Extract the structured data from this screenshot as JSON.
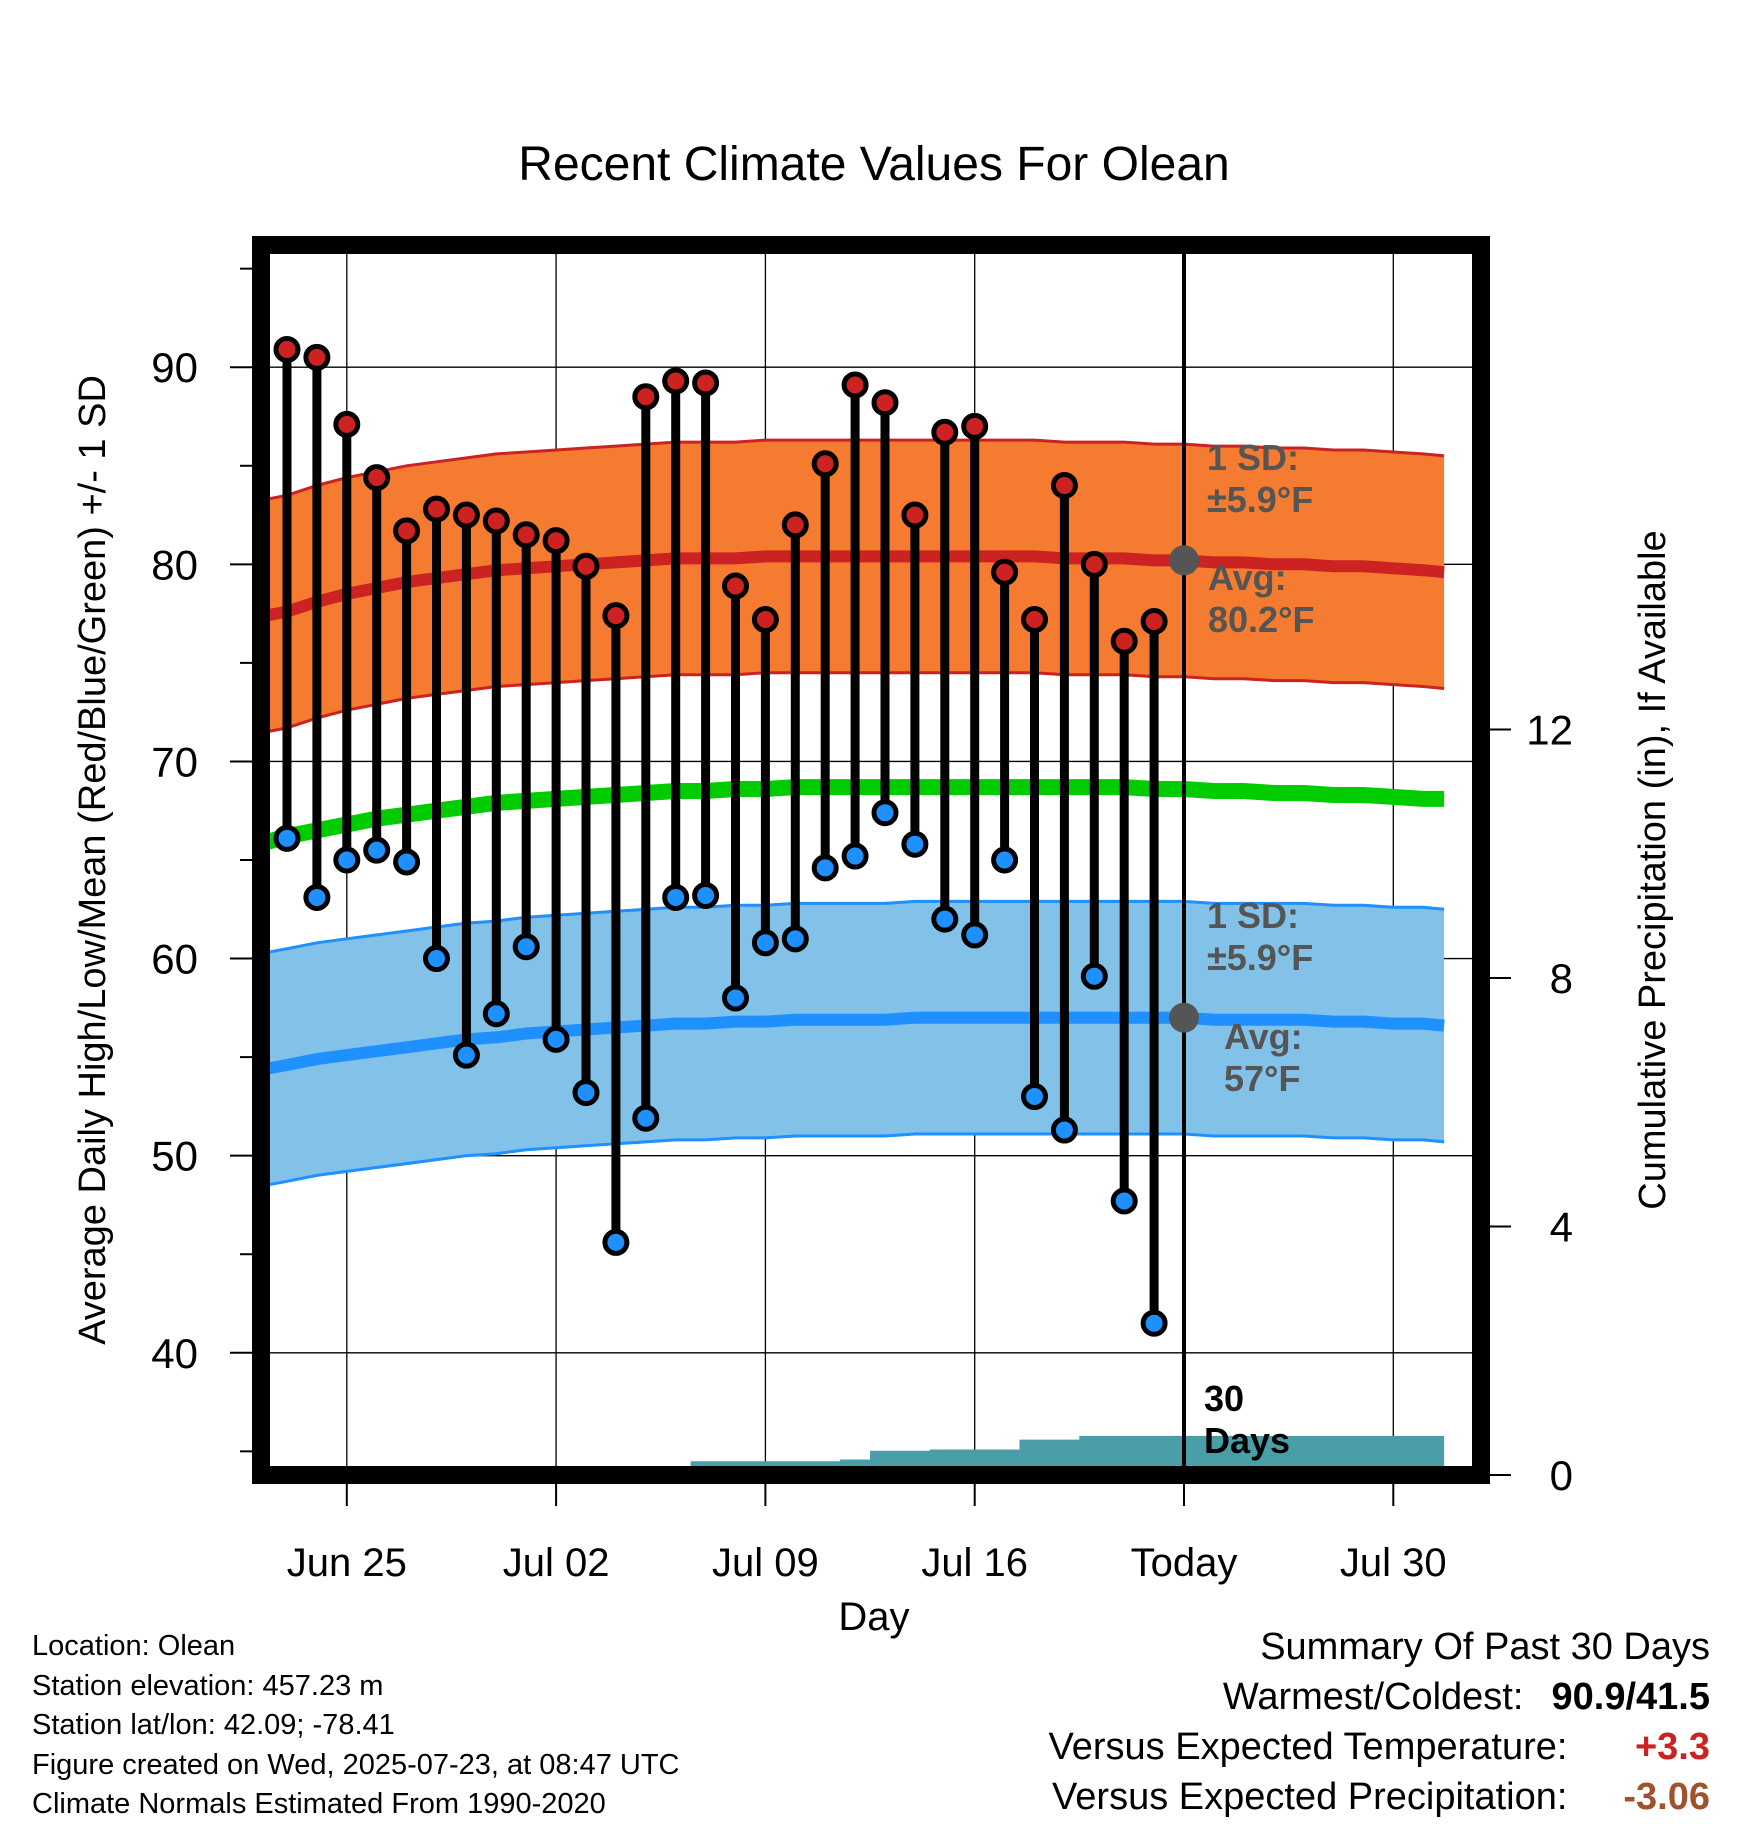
{
  "chart_data": {
    "type": "line",
    "title": "Recent Climate Values For Olean",
    "xlabel": "Day",
    "ylabel": "Average Daily High/Low/Mean (Red/Blue/Green) +/- 1 SD",
    "y2label": "Cumulative Precipitation (in), If Available",
    "x_tick_labels": [
      "Jun 25",
      "Jul 02",
      "Jul 09",
      "Jul 16",
      "Today",
      "Jul 30"
    ],
    "x_tick_days": [
      2,
      9,
      16,
      23,
      30,
      37
    ],
    "ylim": [
      33.8,
      96.2
    ],
    "yticks": [
      40,
      50,
      60,
      70,
      80,
      90
    ],
    "y2lim": [
      0,
      19.8
    ],
    "y2ticks": [
      0,
      4,
      8,
      12
    ],
    "grid": true,
    "x_days": [
      -0.7,
      0,
      1,
      2,
      3,
      4,
      5,
      6,
      7,
      8,
      9,
      10,
      11,
      12,
      13,
      14,
      15,
      16,
      17,
      18,
      19,
      20,
      21,
      22,
      23,
      24,
      25,
      26,
      27,
      28,
      29,
      30,
      31,
      32,
      33,
      34,
      35,
      36,
      37,
      38,
      38.7
    ],
    "daily_dates": [
      "Jun 23",
      "Jun 24",
      "Jun 25",
      "Jun 26",
      "Jun 27",
      "Jun 28",
      "Jun 29",
      "Jun 30",
      "Jul 01",
      "Jul 02",
      "Jul 03",
      "Jul 04",
      "Jul 05",
      "Jul 06",
      "Jul 07",
      "Jul 08",
      "Jul 09",
      "Jul 10",
      "Jul 11",
      "Jul 12",
      "Jul 13",
      "Jul 14",
      "Jul 15",
      "Jul 16",
      "Jul 17",
      "Jul 18",
      "Jul 19",
      "Jul 20",
      "Jul 21",
      "Jul 22"
    ],
    "daily_x": [
      0,
      1,
      2,
      3,
      4,
      5,
      6,
      7,
      8,
      9,
      10,
      11,
      12,
      13,
      14,
      15,
      16,
      17,
      18,
      19,
      20,
      21,
      22,
      23,
      24,
      25,
      26,
      27,
      28,
      29
    ],
    "series": [
      {
        "name": "High",
        "color": "#cc2222",
        "values": [
          90.9,
          90.5,
          87.1,
          84.4,
          81.7,
          82.8,
          82.5,
          82.2,
          81.5,
          81.2,
          79.9,
          77.4,
          88.5,
          89.3,
          89.2,
          78.9,
          77.2,
          82.0,
          85.1,
          89.1,
          88.2,
          82.5,
          86.7,
          87.0,
          79.6,
          77.2,
          84.0,
          80.0,
          76.1,
          77.1
        ]
      },
      {
        "name": "Low",
        "color": "#1e90ff",
        "values": [
          66.1,
          63.1,
          65.0,
          65.5,
          64.9,
          60.0,
          55.1,
          57.2,
          60.6,
          55.9,
          53.2,
          45.6,
          51.9,
          63.1,
          63.2,
          58.0,
          60.8,
          61.0,
          64.6,
          65.2,
          67.4,
          65.8,
          62.0,
          61.2,
          65.0,
          53.0,
          51.3,
          59.1,
          47.7,
          41.5
        ]
      }
    ],
    "normal_high_avg": [
      77.4,
      77.6,
      78.1,
      78.5,
      78.8,
      79.1,
      79.3,
      79.5,
      79.7,
      79.8,
      79.9,
      80.0,
      80.1,
      80.2,
      80.3,
      80.3,
      80.3,
      80.4,
      80.4,
      80.4,
      80.4,
      80.4,
      80.4,
      80.4,
      80.4,
      80.4,
      80.4,
      80.3,
      80.3,
      80.3,
      80.2,
      80.2,
      80.1,
      80.1,
      80.0,
      80.0,
      79.9,
      79.9,
      79.8,
      79.7,
      79.6
    ],
    "normal_high_sd": 5.9,
    "normal_low_avg": [
      54.4,
      54.6,
      54.9,
      55.1,
      55.3,
      55.5,
      55.7,
      55.9,
      56.0,
      56.2,
      56.3,
      56.4,
      56.5,
      56.6,
      56.7,
      56.7,
      56.8,
      56.8,
      56.9,
      56.9,
      56.9,
      56.9,
      57.0,
      57.0,
      57.0,
      57.0,
      57.0,
      57.0,
      57.0,
      57.0,
      57.0,
      57.0,
      56.9,
      56.9,
      56.9,
      56.9,
      56.8,
      56.8,
      56.7,
      56.7,
      56.6
    ],
    "normal_low_sd": 5.9,
    "normal_mean": [
      65.9,
      66.2,
      66.5,
      66.8,
      67.1,
      67.3,
      67.5,
      67.7,
      67.9,
      68.0,
      68.1,
      68.2,
      68.3,
      68.4,
      68.5,
      68.5,
      68.6,
      68.6,
      68.7,
      68.7,
      68.7,
      68.7,
      68.7,
      68.7,
      68.7,
      68.7,
      68.7,
      68.7,
      68.7,
      68.7,
      68.6,
      68.6,
      68.5,
      68.5,
      68.4,
      68.4,
      68.3,
      68.3,
      68.2,
      68.1,
      68.1
    ],
    "precip_cumulative": [
      0.0,
      0.0,
      0.0,
      0.0,
      0.0,
      0.05,
      0.05,
      0.05,
      0.07,
      0.07,
      0.07,
      0.07,
      0.07,
      0.07,
      0.22,
      0.22,
      0.22,
      0.22,
      0.22,
      0.25,
      0.39,
      0.39,
      0.41,
      0.41,
      0.41,
      0.57,
      0.57,
      0.63,
      0.63,
      0.63,
      0.63
    ],
    "annotations": {
      "high_sd_label": [
        "1 SD:",
        "±5.9°F"
      ],
      "high_avg_label": [
        "Avg:",
        "80.2°F"
      ],
      "high_avg_value": 80.2,
      "low_sd_label": [
        "1 SD:",
        "±5.9°F"
      ],
      "low_avg_label": [
        "Avg:",
        "57°F"
      ],
      "low_avg_value": 57,
      "today_label": [
        "30",
        "Days"
      ]
    },
    "colors": {
      "high_band": "#f47b2f",
      "high_line": "#cc2222",
      "low_band": "#82c1e8",
      "low_line": "#1e90ff",
      "mean_line": "#00cc00",
      "precip": "#4a9ea8",
      "annotation": "#555555"
    }
  },
  "info": {
    "location": "Location: Olean",
    "elevation": "Station elevation: 457.23 m",
    "latlon": "Station lat/lon: 42.09; -78.41",
    "created": "Figure created on Wed, 2025-07-23, at 08:47 UTC",
    "normals": "Climate Normals Estimated From 1990-2020"
  },
  "summary": {
    "title": "Summary Of Past 30 Days",
    "warm_cold_label": "Warmest/Coldest:",
    "warm_cold_value": "90.9/41.5",
    "temp_label": "Versus Expected Temperature:",
    "temp_value": "+3.3",
    "temp_color": "#cc2222",
    "precip_label": "Versus Expected Precipitation:",
    "precip_value": "-3.06",
    "precip_color": "#a0522d"
  }
}
